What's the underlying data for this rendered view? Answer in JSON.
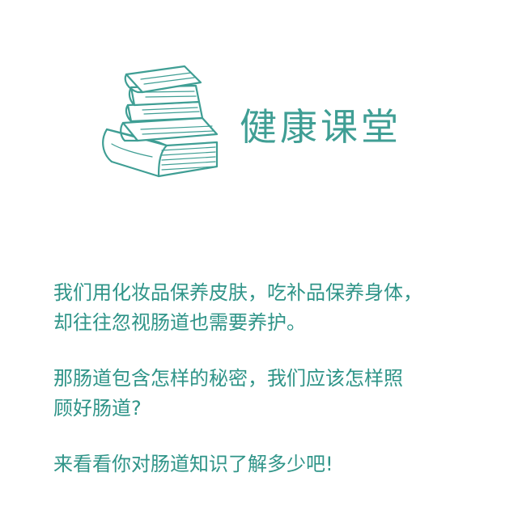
{
  "header": {
    "title": "健康课堂",
    "icon": "stack-of-books-icon",
    "accent_color": "#3f9e94"
  },
  "paragraphs": [
    {
      "lines": [
        "我们用化妆品保养皮肤，吃补品保养身体，",
        "却往往忽视肠道也需要养护。"
      ]
    },
    {
      "lines": [
        "那肠道包含怎样的秘密，我们应该怎样照",
        "顾好肠道?"
      ]
    },
    {
      "lines": [
        "来看看你对肠道知识了解多少吧!"
      ]
    }
  ],
  "text_color": "#2f9488"
}
